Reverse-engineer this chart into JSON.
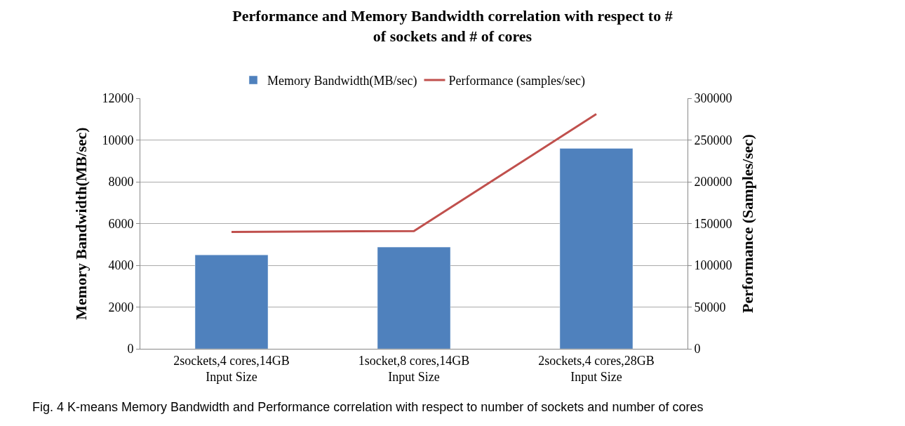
{
  "chart_data": {
    "type": "bar",
    "title": "Performance and Memory Bandwidth correlation with respect to #\nof sockets and # of cores",
    "categories": [
      "2sockets,4 cores,14GB\nInput Size",
      "1socket,8 cores,14GB\nInput Size",
      "2sockets,4 cores,28GB\nInput Size"
    ],
    "series": [
      {
        "name": "Memory Bandwidth(MB/sec)",
        "color": "#4f81bd",
        "values": [
          4500,
          4870,
          9600
        ]
      },
      {
        "name": "Performance (samples/sec)",
        "type": "line",
        "axis": "y2",
        "color": "#c0504d",
        "values": [
          140000,
          141000,
          281000
        ]
      }
    ],
    "ylabel": "Memory Bandwidth(MB/sec)",
    "y2label": "Performance (Samples/sec)",
    "ylim": [
      0,
      12000
    ],
    "yticks": [
      0,
      2000,
      4000,
      6000,
      8000,
      10000,
      12000
    ],
    "y2lim": [
      0,
      300000
    ],
    "y2ticks": [
      0,
      50000,
      100000,
      150000,
      200000,
      250000,
      300000
    ],
    "grid": "y",
    "legend": "top",
    "annotations": [
      "Fig. 4 K-means Memory Bandwidth and Performance correlation with respect to number of sockets and number of cores"
    ]
  }
}
